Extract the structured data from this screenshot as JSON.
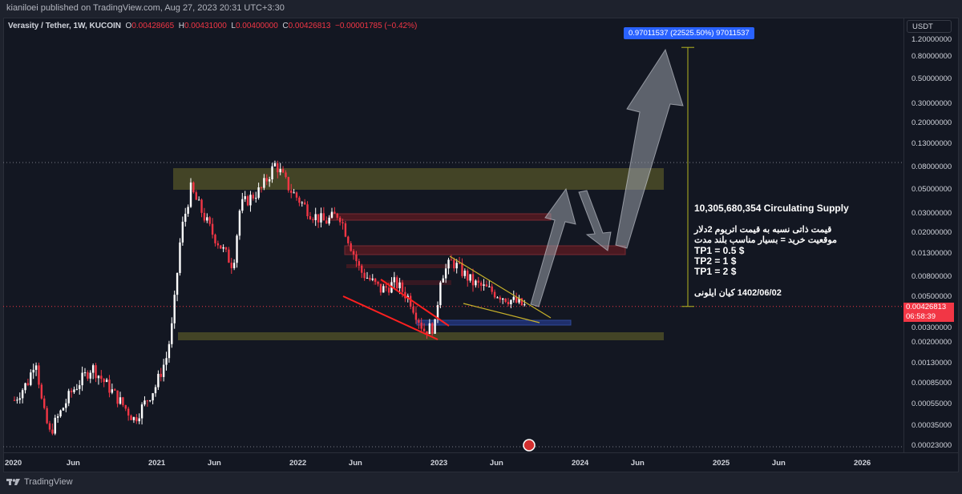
{
  "header": {
    "published": "kianiloei published on TradingView.com, Aug 27, 2023 20:31 UTC+3:30"
  },
  "legend": {
    "symbol": "Verasity / Tether, 1W, KUCOIN",
    "o_label": "O",
    "o": "0.00428665",
    "h_label": "H",
    "h": "0.00431000",
    "l_label": "L",
    "l": "0.00400000",
    "c_label": "C",
    "c": "0.00426813",
    "change": "−0.00001785 (−0.42%)"
  },
  "price_axis": {
    "currency": "USDT",
    "current_price": "0.00426813",
    "countdown": "06:58:39"
  },
  "measure_label": "0.97011537 (22525.50%) 97011537",
  "note": {
    "supply": "10,305,680,354  Circulating Supply",
    "line1": "قیمت ذاتی نسبه به قیمت اتریوم 2دلار",
    "line2": "موقعیت خرید = بسیار مناسب بلند مدت",
    "tp1": "TP1 =  0.5 $",
    "tp2": "TP2 =  1 $",
    "tp3": "TP1 =  2 $",
    "signature": "1402/06/02 کیان ایلونی"
  },
  "footer": {
    "brand": "TradingView"
  },
  "colors": {
    "up": "#ffffff",
    "down": "#f23645",
    "bg": "#131722",
    "accent": "#2962ff",
    "zone_yellow": "#6b6a2a",
    "zone_red": "#5a1a22",
    "zone_blue": "#1f2f6b"
  },
  "chart_data": {
    "type": "candlestick",
    "title": "Verasity / Tether, 1W, KUCOIN",
    "yscale": "log",
    "ylabel": "USDT",
    "y_ticks": [
      "1.20000000",
      "0.80000000",
      "0.50000000",
      "0.30000000",
      "0.20000000",
      "0.13000000",
      "0.08000000",
      "0.05000000",
      "0.03000000",
      "0.02000000",
      "0.01300000",
      "0.00800000",
      "0.00500000",
      "0.00300000",
      "0.00200000",
      "0.00130000",
      "0.00085000",
      "0.00055000",
      "0.00035000",
      "0.00023000"
    ],
    "x_ticks": [
      "2020",
      "Jun",
      "2021",
      "Jun",
      "2022",
      "Jun",
      "2023",
      "Jun",
      "2024",
      "Jun",
      "2025",
      "Jun",
      "2026"
    ],
    "price_path": [
      [
        2020.0,
        0.0006
      ],
      [
        2020.1,
        0.0009
      ],
      [
        2020.15,
        0.0015
      ],
      [
        2020.2,
        0.0005
      ],
      [
        2020.25,
        0.0003
      ],
      [
        2020.4,
        0.0007
      ],
      [
        2020.55,
        0.0012
      ],
      [
        2020.7,
        0.0007
      ],
      [
        2020.85,
        0.0004
      ],
      [
        2021.0,
        0.0008
      ],
      [
        2021.08,
        0.0015
      ],
      [
        2021.12,
        0.003
      ],
      [
        2021.18,
        0.02
      ],
      [
        2021.25,
        0.05
      ],
      [
        2021.4,
        0.02
      ],
      [
        2021.55,
        0.01
      ],
      [
        2021.6,
        0.035
      ],
      [
        2021.75,
        0.05
      ],
      [
        2021.85,
        0.085
      ],
      [
        2021.95,
        0.05
      ],
      [
        2022.1,
        0.03
      ],
      [
        2022.2,
        0.025
      ],
      [
        2022.3,
        0.03
      ],
      [
        2022.35,
        0.02
      ],
      [
        2022.45,
        0.009
      ],
      [
        2022.6,
        0.006
      ],
      [
        2022.7,
        0.007
      ],
      [
        2022.8,
        0.005
      ],
      [
        2022.9,
        0.0026
      ],
      [
        2022.98,
        0.0028
      ],
      [
        2023.02,
        0.008
      ],
      [
        2023.1,
        0.011
      ],
      [
        2023.25,
        0.007
      ],
      [
        2023.5,
        0.005
      ],
      [
        2023.62,
        0.00427
      ]
    ],
    "last_price": 0.00426813,
    "measure_target": 0.97011537
  }
}
